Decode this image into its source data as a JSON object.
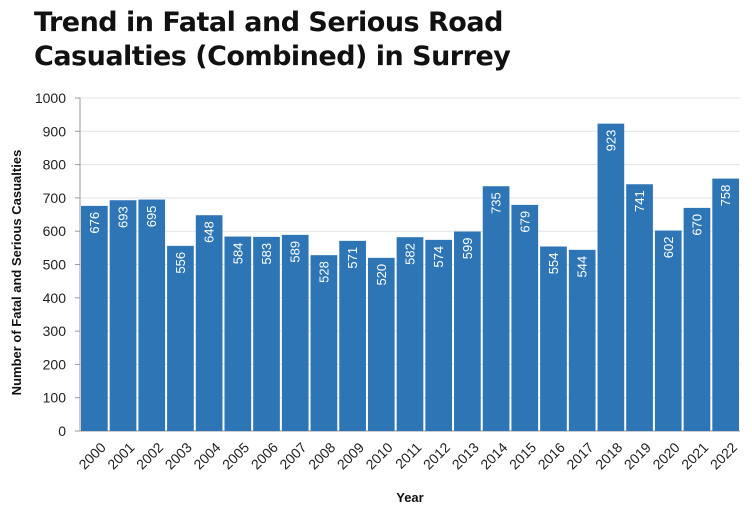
{
  "chart_data": {
    "type": "bar",
    "title": "Trend in Fatal and Serious Road Casualties (Combined) in Surrey",
    "xlabel": "Year",
    "ylabel": "Number of Fatal and Serious Casualties",
    "categories": [
      "2000",
      "2001",
      "2002",
      "2003",
      "2004",
      "2005",
      "2006",
      "2007",
      "2008",
      "2009",
      "2010",
      "2011",
      "2012",
      "2013",
      "2014",
      "2015",
      "2016",
      "2017",
      "2018",
      "2019",
      "2020",
      "2021",
      "2022"
    ],
    "values": [
      676,
      693,
      695,
      556,
      648,
      584,
      583,
      589,
      528,
      571,
      520,
      582,
      574,
      599,
      735,
      679,
      554,
      544,
      923,
      741,
      602,
      670,
      758
    ],
    "ylim": [
      0,
      1000
    ],
    "yticks": [
      0,
      100,
      200,
      300,
      400,
      500,
      600,
      700,
      800,
      900,
      1000
    ],
    "grid": true,
    "data_labels": true,
    "bar_color": "#2E75B6"
  }
}
